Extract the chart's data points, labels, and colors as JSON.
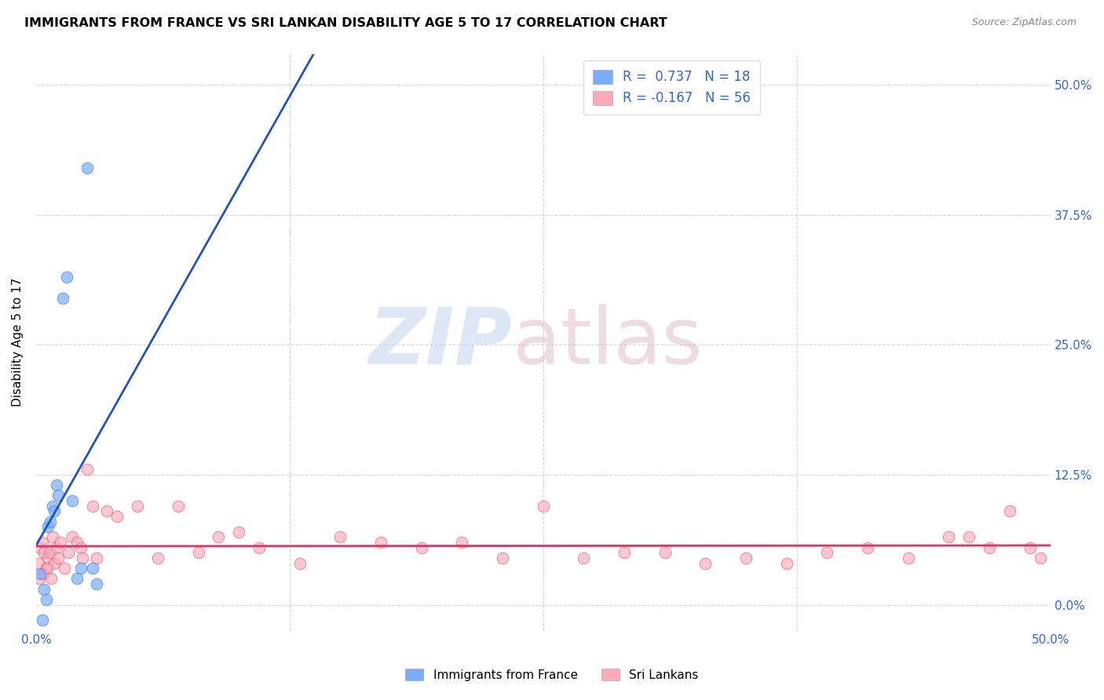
{
  "title": "IMMIGRANTS FROM FRANCE VS SRI LANKAN DISABILITY AGE 5 TO 17 CORRELATION CHART",
  "source": "Source: ZipAtlas.com",
  "ylabel": "Disability Age 5 to 17",
  "ytick_labels": [
    "0.0%",
    "12.5%",
    "25.0%",
    "37.5%",
    "50.0%"
  ],
  "ytick_values": [
    0.0,
    12.5,
    25.0,
    37.5,
    50.0
  ],
  "xlim": [
    0.0,
    50.0
  ],
  "ylim": [
    -2.5,
    53.0
  ],
  "france_color": "#7aadff",
  "france_edge": "#5588dd",
  "srilanka_color": "#ffaabb",
  "srilanka_edge": "#dd6677",
  "france_line_color": "#2255bb",
  "srilanka_line_color": "#dd3366",
  "dashed_line_color": "#aaccee",
  "legend_france_label": "R =  0.737   N = 18",
  "legend_srilanka_label": "R = -0.167   N = 56",
  "france_scatter_x": [
    0.2,
    0.4,
    0.5,
    0.6,
    0.7,
    0.8,
    0.9,
    1.0,
    1.1,
    1.3,
    1.5,
    1.8,
    2.0,
    2.2,
    2.5,
    2.8,
    3.0,
    0.3
  ],
  "france_scatter_y": [
    3.0,
    1.5,
    0.5,
    7.5,
    8.0,
    9.5,
    9.0,
    11.5,
    10.5,
    29.5,
    31.5,
    10.0,
    2.5,
    3.5,
    42.0,
    3.5,
    2.0,
    -1.5
  ],
  "srilanka_scatter_x": [
    0.1,
    0.2,
    0.3,
    0.4,
    0.5,
    0.6,
    0.7,
    0.8,
    0.9,
    1.0,
    1.1,
    1.2,
    1.4,
    1.6,
    1.8,
    2.0,
    2.2,
    2.5,
    2.8,
    3.0,
    3.5,
    4.0,
    5.0,
    6.0,
    7.0,
    8.0,
    9.0,
    10.0,
    11.0,
    13.0,
    15.0,
    17.0,
    19.0,
    21.0,
    23.0,
    25.0,
    27.0,
    29.0,
    31.0,
    33.0,
    35.0,
    37.0,
    39.0,
    41.0,
    43.0,
    45.0,
    46.0,
    47.0,
    48.0,
    49.0,
    49.5,
    0.15,
    0.35,
    0.55,
    0.75,
    2.3
  ],
  "srilanka_scatter_y": [
    4.0,
    5.5,
    6.0,
    5.0,
    3.5,
    4.5,
    5.0,
    6.5,
    4.0,
    5.5,
    4.5,
    6.0,
    3.5,
    5.0,
    6.5,
    6.0,
    5.5,
    13.0,
    9.5,
    4.5,
    9.0,
    8.5,
    9.5,
    4.5,
    9.5,
    5.0,
    6.5,
    7.0,
    5.5,
    4.0,
    6.5,
    6.0,
    5.5,
    6.0,
    4.5,
    9.5,
    4.5,
    5.0,
    5.0,
    4.0,
    4.5,
    4.0,
    5.0,
    5.5,
    4.5,
    6.5,
    6.5,
    5.5,
    9.0,
    5.5,
    4.5,
    2.5,
    3.0,
    3.5,
    2.5,
    4.5
  ]
}
